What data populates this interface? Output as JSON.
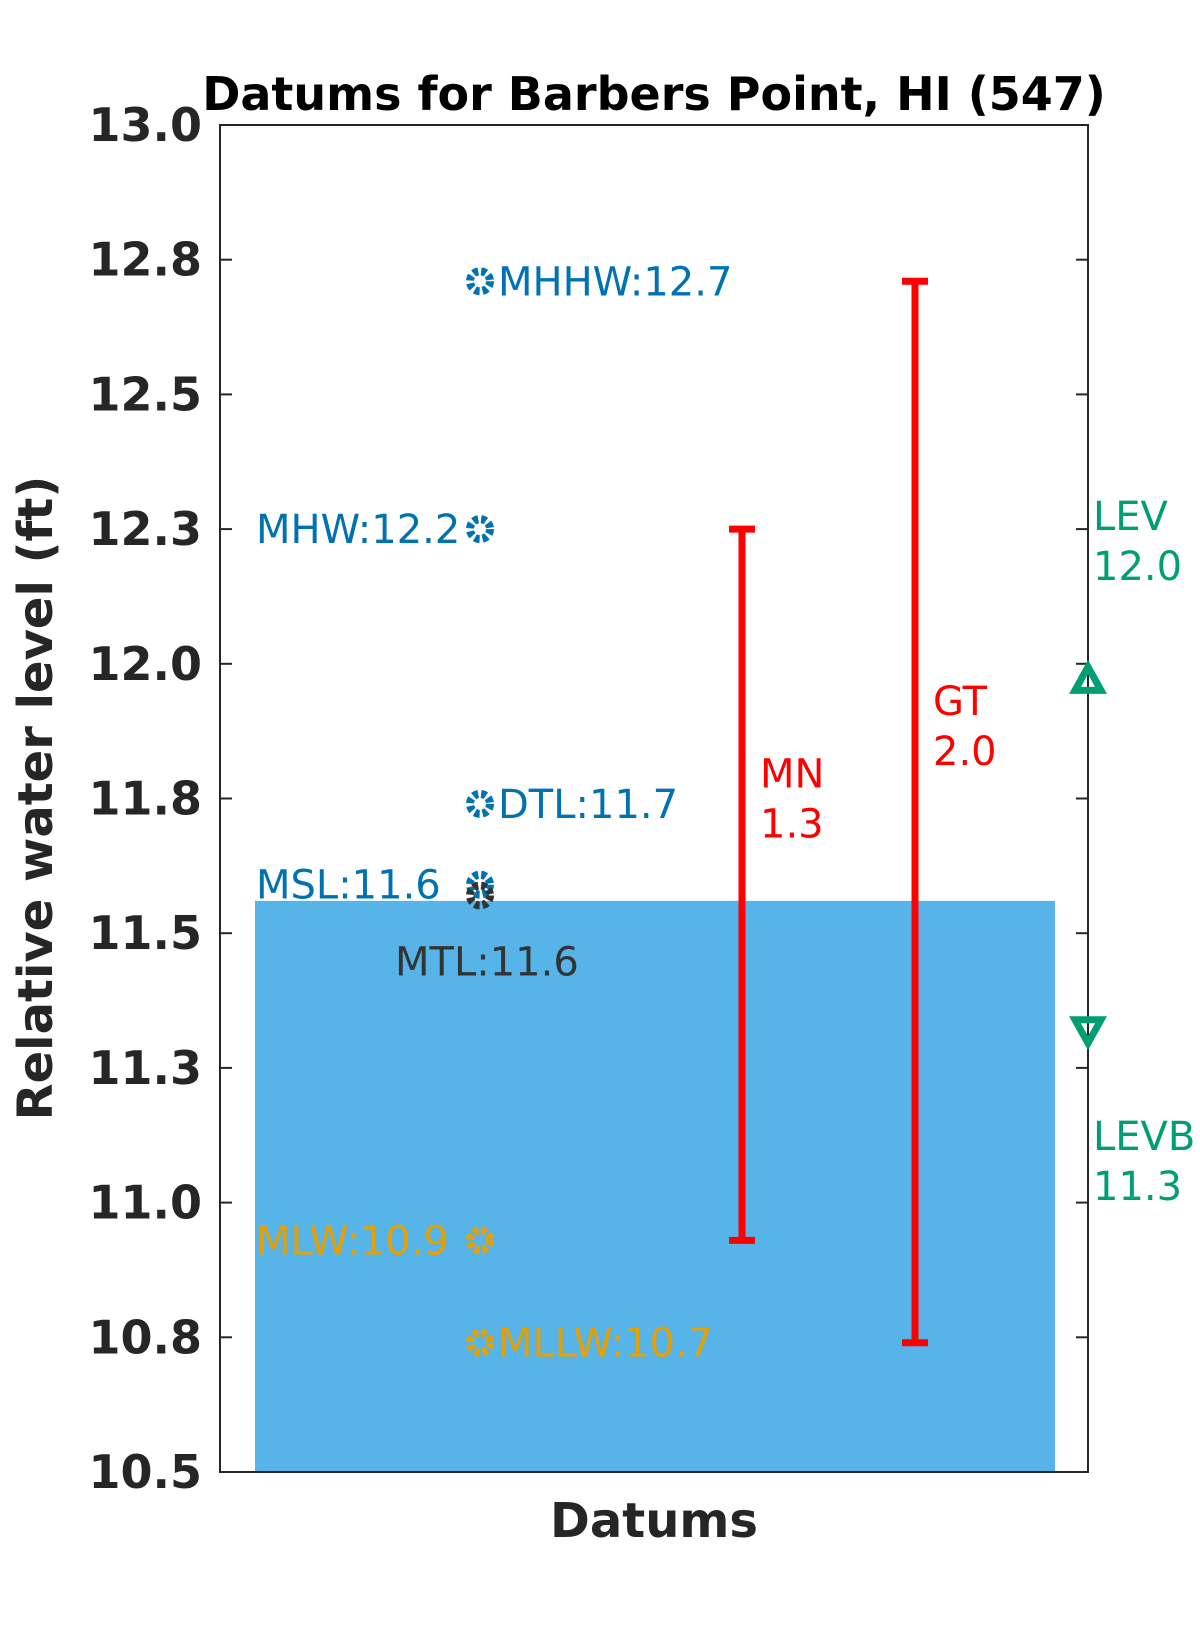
{
  "chart_data": {
    "type": "scatter",
    "title": "Datums for Barbers Point, HI (547)",
    "xlabel": "Datums",
    "ylabel": "Relative water level (ft)",
    "ylim": [
      10.5,
      13.0
    ],
    "yticks": [
      {
        "value": 10.5,
        "label": "10.5"
      },
      {
        "value": 10.75,
        "label": "10.8"
      },
      {
        "value": 11.0,
        "label": "11.0"
      },
      {
        "value": 11.25,
        "label": "11.3"
      },
      {
        "value": 11.5,
        "label": "11.5"
      },
      {
        "value": 11.75,
        "label": "11.8"
      },
      {
        "value": 12.0,
        "label": "12.0"
      },
      {
        "value": 12.25,
        "label": "12.3"
      },
      {
        "value": 12.5,
        "label": "12.5"
      },
      {
        "value": 12.75,
        "label": "12.8"
      },
      {
        "value": 13.0,
        "label": "13.0"
      }
    ],
    "water_level": {
      "value": 11.56,
      "color": "#56B4E9"
    },
    "datums": [
      {
        "name": "MHHW",
        "value": 12.71,
        "label": "MHHW:12.7",
        "color": "#0072B2",
        "label_side": "right"
      },
      {
        "name": "MHW",
        "value": 12.25,
        "label": "MHW:12.2",
        "color": "#0072B2",
        "label_side": "left"
      },
      {
        "name": "DTL",
        "value": 11.74,
        "label": "DTL:11.7",
        "color": "#0072B2",
        "label_side": "right"
      },
      {
        "name": "MSL",
        "value": 11.59,
        "label": "MSL:11.6",
        "color": "#0072B2",
        "label_side": "left"
      },
      {
        "name": "MTL",
        "value": 11.57,
        "label": "MTL:11.6",
        "color": "#333333",
        "label_side": "below"
      },
      {
        "name": "MLW",
        "value": 10.93,
        "label": "MLW:10.9",
        "color": "#E69F00",
        "label_side": "left"
      },
      {
        "name": "MLLW",
        "value": 10.74,
        "label": "MLLW:10.7",
        "color": "#E69F00",
        "label_side": "right"
      }
    ],
    "ranges": [
      {
        "name": "MN",
        "low": 10.93,
        "high": 12.25,
        "label_line1": "MN",
        "label_line2": "1.3",
        "color": "#FF0000"
      },
      {
        "name": "GT",
        "low": 10.74,
        "high": 12.71,
        "label_line1": "GT",
        "label_line2": "2.0",
        "color": "#FF0000"
      }
    ],
    "extremes": [
      {
        "name": "LEV",
        "value": 11.97,
        "label_line1": "LEV",
        "label_line2": "12.0",
        "marker": "triangle-up",
        "color": "#009E73"
      },
      {
        "name": "LEVB",
        "value": 11.32,
        "label_line1": "LEVB",
        "label_line2": "11.3",
        "marker": "triangle-down",
        "color": "#009E73"
      }
    ],
    "grid": false,
    "legend": "none"
  }
}
